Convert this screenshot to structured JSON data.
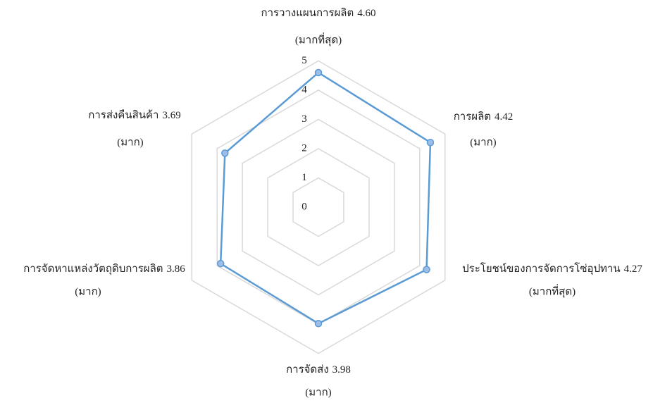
{
  "chart_data": {
    "type": "radar",
    "categories": [
      "การวางแผนการผลิต",
      "การผลิต",
      "ประโยชน์ของการจัดการโซ่อุปทาน",
      "การจัดส่ง",
      "การจัดหาแหล่งวัตถุดิบการผลิต",
      "การส่งคืนสินค้า"
    ],
    "values": [
      4.6,
      4.42,
      4.27,
      3.98,
      3.86,
      3.69
    ],
    "value_labels": [
      "4.60",
      "4.42",
      "4.27",
      "3.98",
      "3.86",
      "3.69"
    ],
    "levels": [
      "(มากที่สุด)",
      "(มาก)",
      "(มากที่สุด)",
      "(มาก)",
      "(มาก)",
      "(มาก)"
    ],
    "color": "#5b9bd5",
    "rlim": [
      0,
      5
    ],
    "rticks": [
      0,
      1,
      2,
      3,
      4,
      5
    ],
    "grid": true
  }
}
